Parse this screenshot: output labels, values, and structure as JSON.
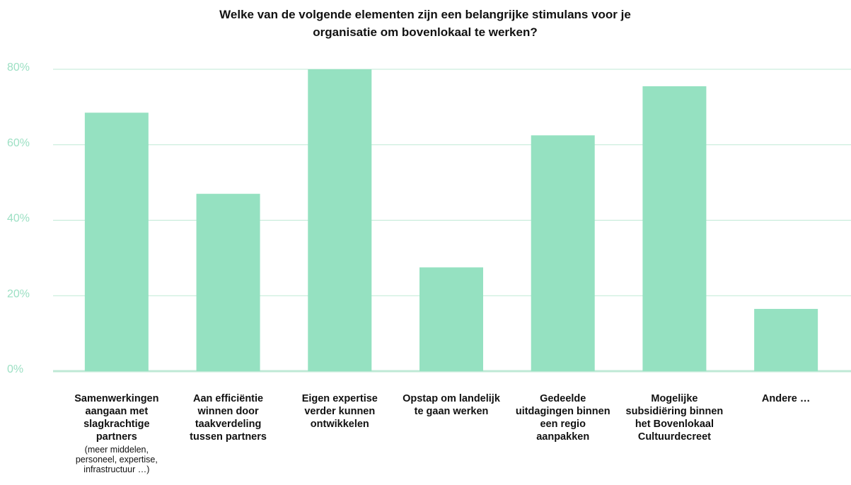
{
  "chart_data": {
    "type": "bar",
    "title": "Welke van de volgende elementen zijn een belangrijke stimulans voor je organisatie om bovenlokaal te werken?",
    "categories": [
      "Samenwerkingen aangaan met slagkrachtige partners",
      "Aan efficiëntie winnen door taakverdeling tussen partners",
      "Eigen expertise verder kunnen ontwikkelen",
      "Opstap om landelijk te gaan werken",
      "Gedeelde uitdagingen binnen een regio aanpakken",
      "Mogelijke subsidiëring binnen het Bovenlokaal Cultuurdecreet",
      "Andere …"
    ],
    "annotation": "(meer middelen, personeel, expertise, infrastructuur …)",
    "values": [
      68.5,
      47,
      80,
      27.5,
      62.5,
      75.5,
      16.5
    ],
    "color": "#95e1c1",
    "ylim": [
      0,
      80
    ],
    "yticks": [
      {
        "value": 0,
        "label": "0%"
      },
      {
        "value": 20,
        "label": "20%"
      },
      {
        "value": 40,
        "label": "40%"
      },
      {
        "value": 60,
        "label": "60%"
      },
      {
        "value": 80,
        "label": "80%"
      }
    ],
    "grid": true
  }
}
